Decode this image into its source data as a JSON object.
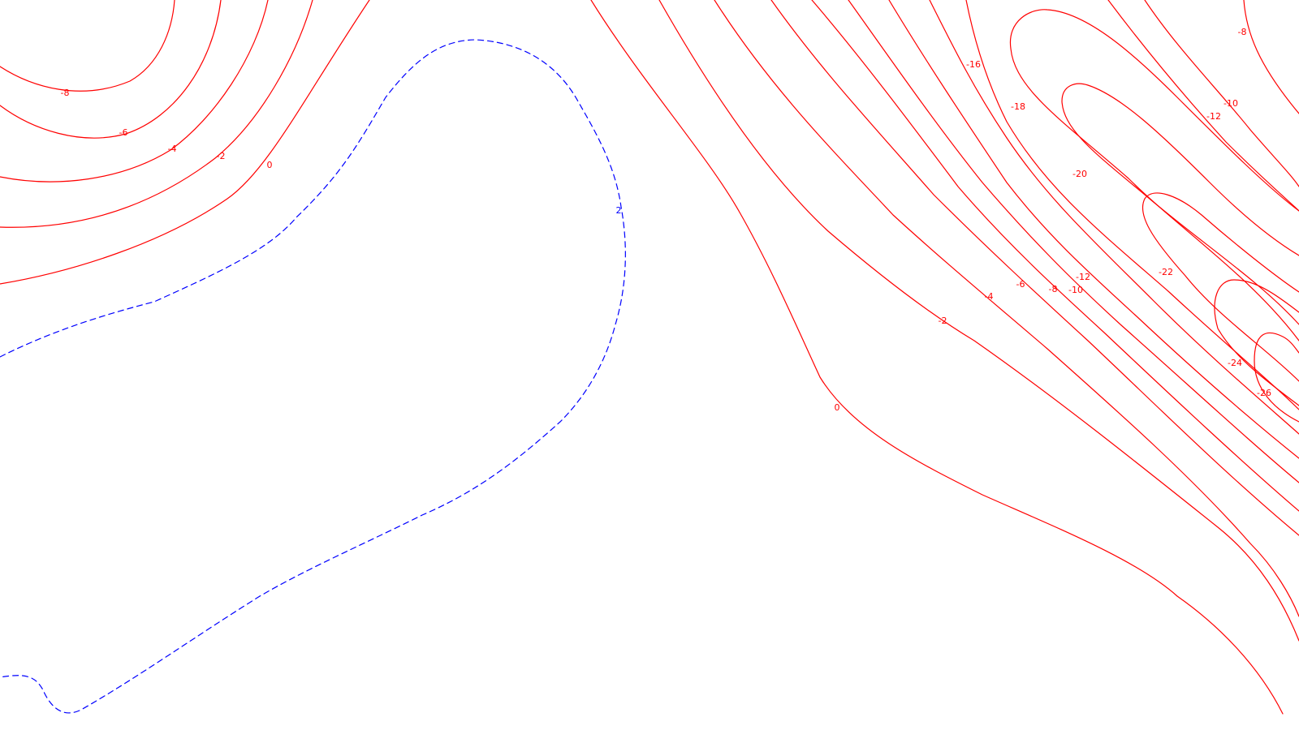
{
  "map": {
    "colors": {
      "negative": "#ff0000",
      "positive": "#0000ff",
      "background": "#ffffff"
    },
    "contour_labels": {
      "zero": "0",
      "pos_2": "2",
      "neg_2": "-2",
      "neg_4": "-4",
      "neg_6": "-6",
      "neg_8": "-8",
      "neg_10": "-10",
      "neg_12": "-12",
      "neg_16": "-16",
      "neg_18": "-18",
      "neg_20": "-20",
      "neg_22": "-22",
      "neg_24": "-24",
      "neg_26": "-26"
    }
  }
}
